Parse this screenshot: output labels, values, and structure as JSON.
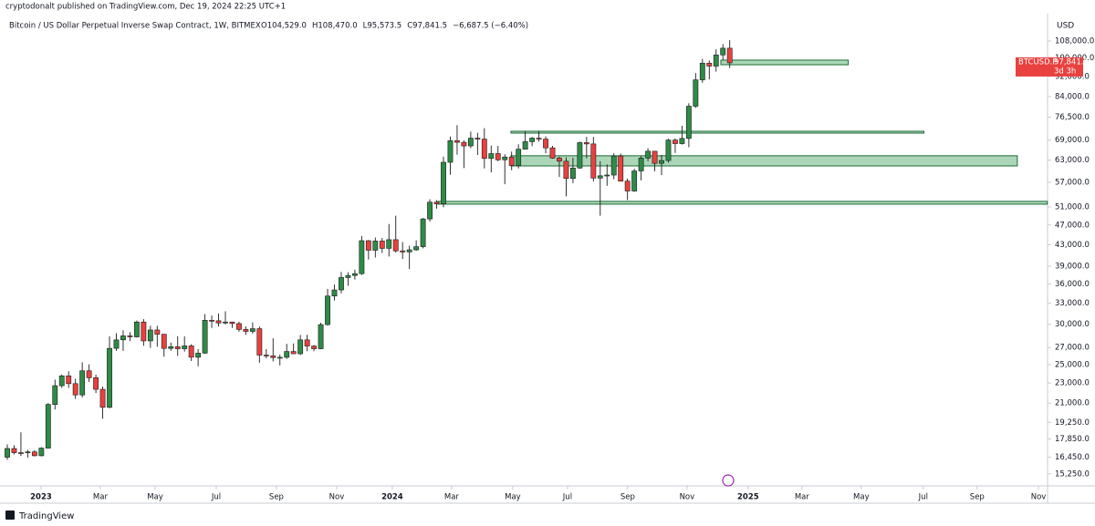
{
  "header": {
    "publisher": "cryptodonalt published on TradingView.com, Dec 19, 2024 22:25 UTC+1"
  },
  "footer": {
    "brand": "TradingView"
  },
  "chart_data": {
    "type": "candlestick",
    "title": "Bitcoin / US Dollar Perpetual Inverse Swap Contract, 1W, BITMEX",
    "ohlc_readout": [
      "O104,529.0",
      "H108,470.0",
      "L95,573.5",
      "C97,841.5",
      "−6,687.5 (−6.40%)"
    ],
    "y_axis_label": "USD",
    "last_price_label": {
      "ticker": "BTCUSD.P",
      "price": "97,841.5",
      "countdown": "3d 3h"
    },
    "log_scale": true,
    "up_color": "#2e8b47",
    "down_color": "#e8413f",
    "zone_color": "#8fc9a0",
    "open": [
      16440,
      17100,
      16780,
      16770,
      16840,
      16550,
      17130,
      20870,
      22720,
      23750,
      22930,
      21790,
      24300,
      23550,
      22350,
      20600,
      26900,
      27950,
      28460,
      28330,
      30300,
      27820,
      29230,
      28670,
      26890,
      27100,
      26850,
      27200,
      25840,
      26320,
      30540,
      30470,
      30170,
      30300,
      30090,
      29300,
      29040,
      29400,
      26090,
      26000,
      25800,
      25830,
      26520,
      26250,
      27950,
      27180,
      26850,
      29950,
      34080,
      35030,
      37050,
      37400,
      37700,
      43770,
      41920,
      43700,
      42280,
      43970,
      41800,
      41600,
      42000,
      42600,
      48300,
      52100,
      51700,
      62400,
      68800,
      68300,
      67200,
      69600,
      69300,
      63500,
      64900,
      63100,
      63900,
      61500,
      66200,
      68500,
      69600,
      69300,
      66600,
      63600,
      62700,
      58000,
      60800,
      68200,
      67800,
      58100,
      58700,
      58900,
      64200,
      57300,
      54800,
      60000,
      63600,
      65600,
      62100,
      62900,
      69000,
      67900,
      69500,
      80400,
      90600,
      97700,
      96400,
      101400,
      104529
    ],
    "high": [
      17420,
      17350,
      18400,
      17000,
      16970,
      17200,
      21000,
      23350,
      23900,
      24250,
      23450,
      25250,
      25020,
      23880,
      22640,
      28400,
      28800,
      29200,
      28950,
      30500,
      30700,
      29800,
      29800,
      28700,
      27600,
      28400,
      28400,
      27400,
      26800,
      31400,
      31200,
      31500,
      31800,
      30350,
      30350,
      29700,
      30250,
      29700,
      26800,
      28150,
      26150,
      27450,
      27500,
      28580,
      28600,
      27300,
      30200,
      35200,
      35900,
      38000,
      37950,
      38400,
      44700,
      43900,
      44400,
      44300,
      47200,
      49000,
      43500,
      42800,
      43850,
      48500,
      52800,
      52600,
      64000,
      70100,
      73800,
      68900,
      71700,
      71300,
      72800,
      67300,
      67200,
      64700,
      65500,
      67700,
      71900,
      70000,
      71900,
      70200,
      67200,
      64000,
      63800,
      63700,
      68500,
      70000,
      70000,
      62700,
      61800,
      65000,
      64900,
      58000,
      60600,
      64200,
      66500,
      65700,
      64500,
      69400,
      69500,
      73600,
      81500,
      93400,
      99600,
      98900,
      104000,
      106500,
      108470
    ],
    "low": [
      16250,
      16650,
      16530,
      16400,
      16500,
      16500,
      17100,
      20400,
      22500,
      22500,
      21400,
      21540,
      23100,
      21970,
      19560,
      20500,
      26600,
      26600,
      27800,
      28250,
      27200,
      26950,
      27100,
      25900,
      26600,
      26000,
      26500,
      25400,
      24800,
      26250,
      29500,
      29700,
      29950,
      29500,
      29000,
      28600,
      28750,
      25200,
      25700,
      25350,
      24900,
      25650,
      26300,
      26100,
      26550,
      26550,
      26800,
      29800,
      33400,
      34500,
      35700,
      36700,
      37500,
      40200,
      40550,
      41400,
      40750,
      41500,
      40300,
      38500,
      41800,
      42300,
      47700,
      50600,
      50900,
      59000,
      64600,
      60800,
      66500,
      64500,
      60700,
      59600,
      62700,
      56500,
      60200,
      60700,
      66100,
      67100,
      68500,
      65000,
      63400,
      58400,
      53500,
      56800,
      60600,
      63500,
      57200,
      49000,
      56100,
      57800,
      57200,
      52600,
      54600,
      57500,
      62700,
      59900,
      58900,
      62300,
      65100,
      67600,
      66800,
      79800,
      89400,
      90800,
      94000,
      99000,
      95573.5
    ],
    "close": [
      17100,
      16780,
      16770,
      16840,
      16550,
      17130,
      20870,
      22720,
      23750,
      22930,
      21790,
      24300,
      23550,
      22350,
      20600,
      26900,
      27950,
      28460,
      28330,
      30300,
      27820,
      29230,
      28670,
      26890,
      27100,
      26850,
      27200,
      25840,
      26320,
      30540,
      30470,
      30170,
      30300,
      30090,
      29300,
      29040,
      29400,
      26090,
      26000,
      25800,
      25830,
      26520,
      26250,
      27950,
      27180,
      26850,
      29950,
      34080,
      35030,
      37050,
      37400,
      37700,
      43770,
      41920,
      43700,
      42280,
      43970,
      41800,
      41600,
      42000,
      42600,
      48300,
      52100,
      51700,
      62400,
      68800,
      68300,
      67200,
      69600,
      69300,
      63500,
      64900,
      63100,
      63900,
      61500,
      66200,
      68500,
      69600,
      69300,
      66600,
      63600,
      62700,
      58000,
      60800,
      68200,
      67800,
      58100,
      58700,
      58900,
      64200,
      57300,
      54800,
      60000,
      63600,
      65600,
      62100,
      62900,
      69000,
      67900,
      69500,
      80400,
      90600,
      97700,
      96400,
      101400,
      104529,
      97841.5
    ],
    "zones": [
      {
        "x_start": 104.7,
        "x_end": 123.4,
        "low": 97000,
        "high": 99040
      },
      {
        "x_start": 73.9,
        "x_end": 134.5,
        "low": 71200,
        "high": 71800
      },
      {
        "x_start": 73.9,
        "x_end": 148.2,
        "low": 61380,
        "high": 64270
      },
      {
        "x_start": 63.2,
        "x_end": 152.6,
        "low": 51630,
        "high": 52290
      }
    ],
    "xlim": [
      -1.07,
      152.5
    ],
    "xticks": [
      {
        "value": 4.95,
        "label": "2023"
      },
      {
        "value": 13.65,
        "label": "Mar"
      },
      {
        "value": 21.69,
        "label": "May"
      },
      {
        "value": 30.66,
        "label": "Jul"
      },
      {
        "value": 39.49,
        "label": "Sep"
      },
      {
        "value": 48.33,
        "label": "Nov"
      },
      {
        "value": 56.49,
        "label": "2024"
      },
      {
        "value": 65.19,
        "label": "Mar"
      },
      {
        "value": 74.16,
        "label": "May"
      },
      {
        "value": 82.2,
        "label": "Jul"
      },
      {
        "value": 91.03,
        "label": "Sep"
      },
      {
        "value": 99.73,
        "label": "Nov"
      },
      {
        "value": 108.7,
        "label": "2025"
      },
      {
        "value": 116.6,
        "label": "Mar"
      },
      {
        "value": 125.3,
        "label": "May"
      },
      {
        "value": 134.4,
        "label": "Jul"
      },
      {
        "value": 142.3,
        "label": "Sep"
      },
      {
        "value": 151.3,
        "label": "Nov"
      }
    ],
    "ylim": [
      14440,
      122200
    ],
    "yticks": [
      {
        "value": 108000,
        "label": "108,000.0"
      },
      {
        "value": 100000,
        "label": "100,000.0"
      },
      {
        "value": 92000,
        "label": "92,000.0"
      },
      {
        "value": 84000,
        "label": "84,000.0"
      },
      {
        "value": 76500,
        "label": "76,500.0"
      },
      {
        "value": 69000,
        "label": "69,000.0"
      },
      {
        "value": 63000,
        "label": "63,000.0"
      },
      {
        "value": 57000,
        "label": "57,000.0"
      },
      {
        "value": 51000,
        "label": "51,000.0"
      },
      {
        "value": 47000,
        "label": "47,000.0"
      },
      {
        "value": 43000,
        "label": "43,000.0"
      },
      {
        "value": 39000,
        "label": "39,000.0"
      },
      {
        "value": 36000,
        "label": "36,000.0"
      },
      {
        "value": 33000,
        "label": "33,000.0"
      },
      {
        "value": 30000,
        "label": "30,000.0"
      },
      {
        "value": 27000,
        "label": "27,000.0"
      },
      {
        "value": 25000,
        "label": "25,000.0"
      },
      {
        "value": 23000,
        "label": "23,000.0"
      },
      {
        "value": 21000,
        "label": "21,000.0"
      },
      {
        "value": 19250,
        "label": "19,250.0"
      },
      {
        "value": 17850,
        "label": "17,850.0"
      },
      {
        "value": 16450,
        "label": "16,450.0"
      },
      {
        "value": 15250,
        "label": "15,250.0"
      }
    ]
  }
}
